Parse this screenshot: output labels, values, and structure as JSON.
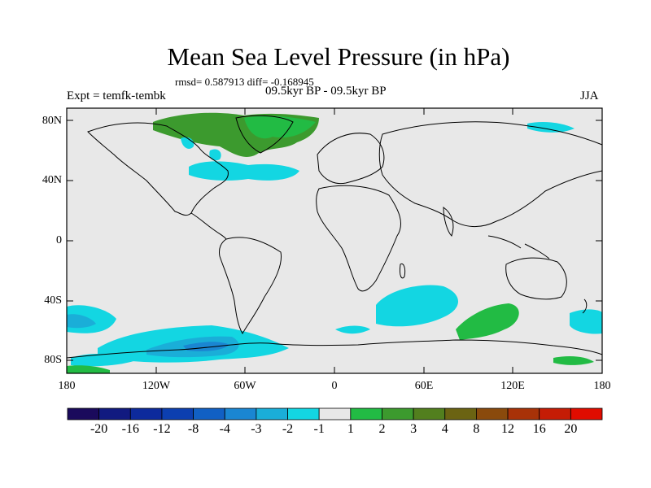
{
  "header": {
    "title": "Mean Sea Level Pressure (in hPa)",
    "stats": "rmsd= 0.587913 diff= -0.168945",
    "experiment": "Expt = temfk-tembk",
    "period": "09.5kyr BP - 09.5kyr BP",
    "season": "JJA"
  },
  "axes": {
    "lat_labels": [
      "80N",
      "40N",
      "0",
      "40S",
      "80S"
    ],
    "lon_labels": [
      "180",
      "120W",
      "60W",
      "0",
      "60E",
      "120E",
      "180"
    ]
  },
  "colorbar": {
    "labels": [
      "-20",
      "-16",
      "-12",
      "-8",
      "-4",
      "-3",
      "-2",
      "-1",
      "1",
      "2",
      "3",
      "4",
      "8",
      "12",
      "16",
      "20"
    ],
    "colors": [
      "#1a0a5c",
      "#111a80",
      "#0d2a9c",
      "#0c3fb0",
      "#1160c4",
      "#1a86d2",
      "#1aaed8",
      "#13d6e2",
      "#e8e8e8",
      "#22bb44",
      "#3c9a2e",
      "#527f1e",
      "#6b6312",
      "#8a4a0c",
      "#a83208",
      "#c51c05",
      "#e00c00"
    ]
  },
  "colors": {
    "background": "#e8e8e8",
    "negative_small": "#13d6e2",
    "negative_medium": "#1aaed8",
    "negative_large": "#1a86d2",
    "positive_small": "#22bb44",
    "positive_medium": "#3c9a2e"
  }
}
